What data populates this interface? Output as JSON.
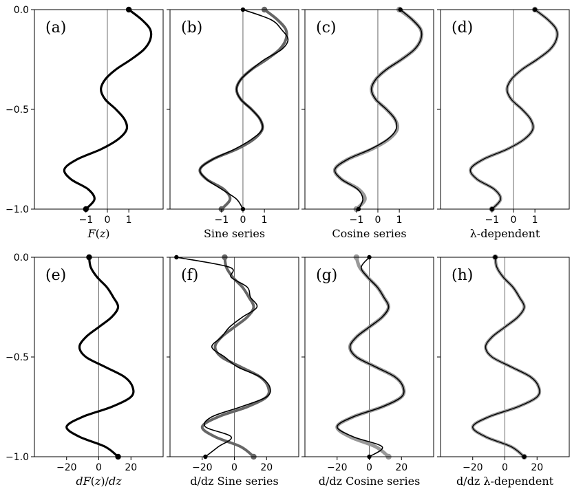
{
  "chart_data": [
    {
      "type": "line",
      "panel": "(a)",
      "xlabel": "F(z)",
      "xticks": [
        -1,
        0,
        1
      ],
      "xlim": [
        -3.4,
        2.6
      ],
      "ylim": [
        -1.0,
        0.0
      ],
      "yticks": [
        0.0,
        -0.5,
        -1.0
      ],
      "series": [
        {
          "color": "#000000",
          "width": 3.2,
          "z": [
            0,
            -0.05,
            -0.1,
            -0.15,
            -0.2,
            -0.25,
            -0.3,
            -0.35,
            -0.4,
            -0.45,
            -0.5,
            -0.55,
            -0.6,
            -0.65,
            -0.7,
            -0.75,
            -0.8,
            -0.85,
            -0.9,
            -0.95,
            -1.0
          ],
          "x": [
            1.0,
            1.6,
            2.0,
            2.0,
            1.7,
            1.1,
            0.4,
            -0.1,
            -0.3,
            -0.1,
            0.4,
            0.8,
            0.9,
            0.5,
            -0.3,
            -1.4,
            -2.0,
            -1.7,
            -0.9,
            -0.6,
            -1.0
          ]
        }
      ]
    },
    {
      "type": "line",
      "panel": "(b)",
      "xlabel": "Sine series",
      "xticks": [
        -1,
        0,
        1
      ],
      "xlim": [
        -3.4,
        2.6
      ],
      "ylim": [
        -1.0,
        0.0
      ],
      "yticks": [
        0.0,
        -0.5,
        -1.0
      ],
      "series": [
        {
          "color": "#666666",
          "width": 4,
          "z": [
            0,
            -0.05,
            -0.1,
            -0.15,
            -0.2,
            -0.25,
            -0.3,
            -0.35,
            -0.4,
            -0.45,
            -0.5,
            -0.55,
            -0.6,
            -0.65,
            -0.7,
            -0.75,
            -0.8,
            -0.85,
            -0.9,
            -0.95,
            -1.0
          ],
          "x": [
            1.0,
            1.6,
            2.0,
            2.0,
            1.7,
            1.1,
            0.4,
            -0.1,
            -0.3,
            -0.1,
            0.4,
            0.8,
            0.9,
            0.5,
            -0.3,
            -1.4,
            -2.0,
            -1.7,
            -0.9,
            -0.6,
            -1.0
          ]
        },
        {
          "color": "#000000",
          "width": 1.6,
          "z": [
            0,
            -0.05,
            -0.1,
            -0.15,
            -0.2,
            -0.25,
            -0.3,
            -0.35,
            -0.4,
            -0.45,
            -0.5,
            -0.55,
            -0.6,
            -0.65,
            -0.7,
            -0.75,
            -0.8,
            -0.85,
            -0.9,
            -0.95,
            -1.0
          ],
          "x": [
            0.0,
            1.3,
            1.8,
            2.1,
            1.8,
            1.0,
            0.4,
            -0.1,
            -0.3,
            -0.1,
            0.4,
            0.8,
            0.9,
            0.4,
            -0.4,
            -1.4,
            -2.0,
            -1.7,
            -1.0,
            -0.3,
            0.0
          ]
        }
      ]
    },
    {
      "type": "line",
      "panel": "(c)",
      "xlabel": "Cosine series",
      "xticks": [
        -1,
        0,
        1
      ],
      "xlim": [
        -3.4,
        2.6
      ],
      "ylim": [
        -1.0,
        0.0
      ],
      "yticks": [
        0.0,
        -0.5,
        -1.0
      ],
      "series": [
        {
          "color": "#999999",
          "width": 5,
          "z": [
            0,
            -0.05,
            -0.1,
            -0.15,
            -0.2,
            -0.25,
            -0.3,
            -0.35,
            -0.4,
            -0.45,
            -0.5,
            -0.55,
            -0.6,
            -0.65,
            -0.7,
            -0.75,
            -0.8,
            -0.85,
            -0.9,
            -0.95,
            -1.0
          ],
          "x": [
            1.0,
            1.6,
            2.0,
            2.0,
            1.7,
            1.1,
            0.4,
            -0.1,
            -0.3,
            -0.1,
            0.4,
            0.8,
            0.9,
            0.5,
            -0.3,
            -1.4,
            -2.0,
            -1.7,
            -0.9,
            -0.6,
            -1.0
          ]
        },
        {
          "color": "#000000",
          "width": 1.6,
          "z": [
            0,
            -0.05,
            -0.1,
            -0.15,
            -0.2,
            -0.25,
            -0.3,
            -0.35,
            -0.4,
            -0.45,
            -0.5,
            -0.55,
            -0.6,
            -0.65,
            -0.7,
            -0.75,
            -0.8,
            -0.85,
            -0.9,
            -0.95,
            -1.0
          ],
          "x": [
            1.05,
            1.6,
            2.0,
            2.0,
            1.7,
            1.1,
            0.4,
            -0.1,
            -0.3,
            -0.1,
            0.4,
            0.8,
            0.85,
            0.45,
            -0.35,
            -1.4,
            -2.0,
            -1.7,
            -0.95,
            -0.7,
            -0.9
          ]
        }
      ]
    },
    {
      "type": "line",
      "panel": "(d)",
      "xlabel": "λ-dependent",
      "xticks": [
        -1,
        0,
        1
      ],
      "xlim": [
        -3.4,
        2.6
      ],
      "ylim": [
        -1.0,
        0.0
      ],
      "yticks": [
        0.0,
        -0.5,
        -1.0
      ],
      "series": [
        {
          "color": "#999999",
          "width": 4.5,
          "z": [
            0,
            -0.05,
            -0.1,
            -0.15,
            -0.2,
            -0.25,
            -0.3,
            -0.35,
            -0.4,
            -0.45,
            -0.5,
            -0.55,
            -0.6,
            -0.65,
            -0.7,
            -0.75,
            -0.8,
            -0.85,
            -0.9,
            -0.95,
            -1.0
          ],
          "x": [
            1.0,
            1.6,
            2.0,
            2.0,
            1.7,
            1.1,
            0.4,
            -0.1,
            -0.3,
            -0.1,
            0.4,
            0.8,
            0.9,
            0.5,
            -0.3,
            -1.4,
            -2.0,
            -1.7,
            -0.9,
            -0.6,
            -1.0
          ]
        },
        {
          "color": "#000000",
          "width": 1.4,
          "z": [
            0,
            -0.05,
            -0.1,
            -0.15,
            -0.2,
            -0.25,
            -0.3,
            -0.35,
            -0.4,
            -0.45,
            -0.5,
            -0.55,
            -0.6,
            -0.65,
            -0.7,
            -0.75,
            -0.8,
            -0.85,
            -0.9,
            -0.95,
            -1.0
          ],
          "x": [
            1.0,
            1.6,
            2.0,
            2.0,
            1.7,
            1.1,
            0.4,
            -0.1,
            -0.3,
            -0.1,
            0.4,
            0.8,
            0.9,
            0.5,
            -0.3,
            -1.4,
            -2.0,
            -1.7,
            -0.9,
            -0.6,
            -1.0
          ]
        }
      ]
    },
    {
      "type": "line",
      "panel": "(e)",
      "xlabel": "dF(z)/dz",
      "xticks": [
        -20,
        0,
        20
      ],
      "xlim": [
        -40,
        40
      ],
      "ylim": [
        -1.0,
        0.0
      ],
      "yticks": [
        0.0,
        -0.5,
        -1.0
      ],
      "series": [
        {
          "color": "#000000",
          "width": 3.2,
          "z": [
            0,
            -0.05,
            -0.1,
            -0.15,
            -0.2,
            -0.25,
            -0.3,
            -0.35,
            -0.4,
            -0.45,
            -0.5,
            -0.55,
            -0.6,
            -0.65,
            -0.7,
            -0.75,
            -0.8,
            -0.85,
            -0.9,
            -0.95,
            -1.0
          ],
          "x": [
            -6,
            -5,
            -1,
            5,
            9,
            12,
            8,
            0,
            -8,
            -12,
            -8,
            4,
            16,
            21,
            20,
            8,
            -10,
            -20,
            -12,
            4,
            12
          ]
        }
      ]
    },
    {
      "type": "line",
      "panel": "(f)",
      "xlabel": "d/dz Sine series",
      "xticks": [
        -20,
        0,
        20
      ],
      "xlim": [
        -40,
        40
      ],
      "ylim": [
        -1.0,
        0.0
      ],
      "yticks": [
        0.0,
        -0.5,
        -1.0
      ],
      "series": [
        {
          "color": "#666666",
          "width": 4,
          "z": [
            0,
            -0.05,
            -0.1,
            -0.15,
            -0.2,
            -0.25,
            -0.3,
            -0.35,
            -0.4,
            -0.45,
            -0.5,
            -0.55,
            -0.6,
            -0.65,
            -0.7,
            -0.75,
            -0.8,
            -0.85,
            -0.9,
            -0.95,
            -1.0
          ],
          "x": [
            -6,
            -5,
            -1,
            5,
            9,
            12,
            8,
            0,
            -8,
            -12,
            -8,
            4,
            16,
            21,
            20,
            8,
            -10,
            -20,
            -12,
            4,
            12
          ]
        },
        {
          "color": "#000000",
          "width": 1.6,
          "z": [
            0,
            -0.05,
            -0.1,
            -0.15,
            -0.2,
            -0.25,
            -0.3,
            -0.35,
            -0.4,
            -0.45,
            -0.5,
            -0.55,
            -0.6,
            -0.65,
            -0.7,
            -0.75,
            -0.8,
            -0.85,
            -0.9,
            -0.95,
            -1.0
          ],
          "x": [
            -36,
            -3,
            -2,
            8,
            10,
            14,
            5,
            -3,
            -8,
            -14,
            -6,
            2,
            16,
            22,
            20,
            4,
            -14,
            -18,
            -2,
            -10,
            -18
          ]
        }
      ]
    },
    {
      "type": "line",
      "panel": "(g)",
      "xlabel": "d/dz Cosine series",
      "xticks": [
        -20,
        0,
        20
      ],
      "xlim": [
        -40,
        40
      ],
      "ylim": [
        -1.0,
        0.0
      ],
      "yticks": [
        0.0,
        -0.5,
        -1.0
      ],
      "series": [
        {
          "color": "#999999",
          "width": 5,
          "z": [
            0,
            -0.05,
            -0.1,
            -0.15,
            -0.2,
            -0.25,
            -0.3,
            -0.35,
            -0.4,
            -0.45,
            -0.5,
            -0.55,
            -0.6,
            -0.65,
            -0.7,
            -0.75,
            -0.8,
            -0.85,
            -0.9,
            -0.95,
            -1.0
          ],
          "x": [
            -8,
            -6,
            -1,
            5,
            9,
            12,
            8,
            0,
            -8,
            -12,
            -8,
            4,
            16,
            21,
            20,
            8,
            -10,
            -20,
            -12,
            4,
            12
          ]
        },
        {
          "color": "#000000",
          "width": 1.6,
          "z": [
            0,
            -0.05,
            -0.1,
            -0.15,
            -0.2,
            -0.25,
            -0.3,
            -0.35,
            -0.4,
            -0.45,
            -0.5,
            -0.55,
            -0.6,
            -0.65,
            -0.7,
            -0.75,
            -0.8,
            -0.85,
            -0.9,
            -0.95,
            -1.0
          ],
          "x": [
            0,
            -5,
            -1,
            5,
            9,
            12,
            8,
            0,
            -8,
            -12,
            -8,
            4,
            16,
            21,
            20,
            8,
            -10,
            -20,
            -10,
            8,
            0
          ]
        }
      ]
    },
    {
      "type": "line",
      "panel": "(h)",
      "xlabel": "d/dz λ-dependent",
      "xticks": [
        -20,
        0,
        20
      ],
      "xlim": [
        -40,
        40
      ],
      "ylim": [
        -1.0,
        0.0
      ],
      "yticks": [
        0.0,
        -0.5,
        -1.0
      ],
      "series": [
        {
          "color": "#999999",
          "width": 4.5,
          "z": [
            0,
            -0.05,
            -0.1,
            -0.15,
            -0.2,
            -0.25,
            -0.3,
            -0.35,
            -0.4,
            -0.45,
            -0.5,
            -0.55,
            -0.6,
            -0.65,
            -0.7,
            -0.75,
            -0.8,
            -0.85,
            -0.9,
            -0.95,
            -1.0
          ],
          "x": [
            -6,
            -5,
            -1,
            5,
            9,
            12,
            8,
            0,
            -8,
            -12,
            -8,
            4,
            16,
            21,
            20,
            8,
            -10,
            -20,
            -12,
            4,
            12
          ]
        },
        {
          "color": "#000000",
          "width": 1.4,
          "z": [
            0,
            -0.05,
            -0.1,
            -0.15,
            -0.2,
            -0.25,
            -0.3,
            -0.35,
            -0.4,
            -0.45,
            -0.5,
            -0.55,
            -0.6,
            -0.65,
            -0.7,
            -0.75,
            -0.8,
            -0.85,
            -0.9,
            -0.95,
            -1.0
          ],
          "x": [
            -6,
            -5,
            -1,
            5,
            9,
            12,
            8,
            0,
            -8,
            -12,
            -8,
            4,
            16,
            21,
            20,
            8,
            -10,
            -20,
            -12,
            4,
            12
          ]
        }
      ]
    }
  ]
}
